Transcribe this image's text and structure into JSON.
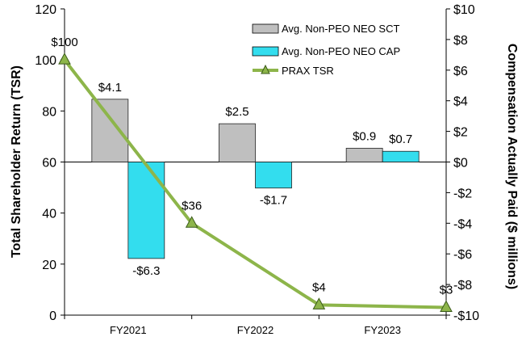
{
  "chart_data": {
    "type": "bar",
    "categories": [
      "FY2021",
      "FY2022",
      "FY2023"
    ],
    "series": [
      {
        "name": "Avg. Non-PEO NEO SCT",
        "axis": "right",
        "values": [
          4.1,
          2.5,
          0.9
        ],
        "labels": [
          "$4.1",
          "$2.5",
          "$0.9"
        ],
        "color": "#bfbfbf"
      },
      {
        "name": "Avg. Non-PEO NEO CAP",
        "axis": "right",
        "values": [
          -6.3,
          -1.7,
          0.7
        ],
        "labels": [
          "-$6.3",
          "-$1.7",
          "$0.7"
        ],
        "color": "#33ddee"
      },
      {
        "name": "PRAX TSR",
        "type": "line",
        "axis": "left",
        "x": [
          0,
          1,
          2,
          3
        ],
        "values": [
          100,
          36,
          4,
          3
        ],
        "labels": [
          "$100",
          "$36",
          "$4",
          "$3"
        ],
        "color": "#8db54a"
      }
    ],
    "yleft": {
      "label": "Total Shareholder Return (TSR)",
      "ylim": [
        0,
        120
      ],
      "ticks": [
        "0",
        "20",
        "40",
        "60",
        "80",
        "100",
        "120"
      ]
    },
    "yright": {
      "label": "Compensation Actually Paid ($ millions)",
      "ylim": [
        -10,
        10
      ],
      "ticks": [
        "-$10",
        "-$8",
        "-$6",
        "-$4",
        "-$2",
        "$0",
        "$2",
        "$4",
        "$6",
        "$8",
        "$10"
      ]
    },
    "legend_position": "top-right"
  }
}
